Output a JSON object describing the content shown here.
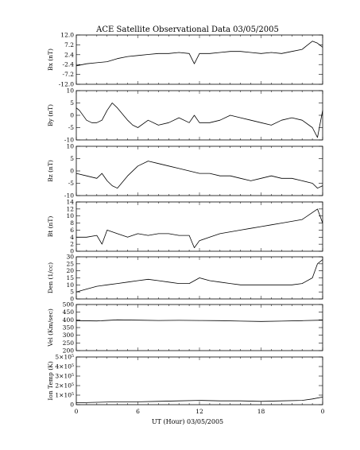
{
  "chart_data": {
    "type": "line",
    "title": "ACE Satellite Observational Data   03/05/2005",
    "xlabel": "UT (Hour)  03/05/2005",
    "x_ticks": [
      "0",
      "6",
      "12",
      "18",
      "0"
    ],
    "x_range_hours": [
      0,
      24
    ],
    "grid": false,
    "panels": [
      {
        "ylabel": "Bx (nT)",
        "ylim": [
          -12,
          12
        ],
        "yticks": [
          12.0,
          7.2,
          2.4,
          -2.4,
          -7.2,
          -12.0
        ],
        "ytick_labels": [
          "12.0",
          "7.2",
          "2.4",
          "-2.4",
          "-7.2",
          "-12.0"
        ],
        "x": [
          0,
          1,
          2,
          3,
          4,
          5,
          6,
          7,
          8,
          9,
          10,
          11,
          11.5,
          12,
          13,
          14,
          15,
          16,
          17,
          18,
          19,
          20,
          21,
          22,
          22.5,
          23,
          23.5,
          24
        ],
        "y": [
          -3,
          -2,
          -1.5,
          -1,
          0.5,
          1.5,
          2,
          2.5,
          3,
          3,
          3.5,
          3,
          -2,
          3,
          3,
          3.5,
          4,
          4,
          3.5,
          3,
          3.5,
          3,
          4,
          5,
          7,
          9,
          8,
          6
        ]
      },
      {
        "ylabel": "By (nT)",
        "ylim": [
          -10,
          10
        ],
        "yticks": [
          10,
          5,
          0,
          -5,
          -10
        ],
        "ytick_labels": [
          "10",
          "5",
          "0",
          "-5",
          "-10"
        ],
        "x": [
          0,
          0.3,
          1,
          1.5,
          2,
          2.5,
          3,
          3.5,
          4,
          5,
          5.5,
          6,
          7,
          8,
          9,
          10,
          11,
          11.5,
          12,
          13,
          14,
          15,
          16,
          17,
          18,
          19,
          20,
          21,
          22,
          23,
          23.5,
          24
        ],
        "y": [
          3,
          2,
          -2,
          -3,
          -3,
          -2,
          2,
          5,
          3,
          -2,
          -4,
          -5,
          -2,
          -4,
          -3,
          -1,
          -3,
          0,
          -3,
          -3,
          -2,
          0,
          -1,
          -2,
          -3,
          -4,
          -2,
          -1,
          -2,
          -5,
          -9,
          2
        ]
      },
      {
        "ylabel": "Bz (nT)",
        "ylim": [
          -10,
          10
        ],
        "yticks": [
          10,
          5,
          0,
          -5,
          -10
        ],
        "ytick_labels": [
          "10",
          "5",
          "0",
          "-5",
          "-10"
        ],
        "x": [
          0,
          1,
          2,
          2.5,
          3,
          3.5,
          4,
          5,
          6,
          7,
          8,
          9,
          10,
          11,
          12,
          13,
          14,
          15,
          16,
          17,
          18,
          19,
          20,
          21,
          22,
          23,
          23.5,
          24
        ],
        "y": [
          -1,
          -2,
          -3,
          -1,
          -4,
          -6,
          -7,
          -2,
          2,
          4,
          3,
          2,
          1,
          0,
          -1,
          -1,
          -2,
          -2,
          -3,
          -4,
          -3,
          -2,
          -3,
          -3,
          -4,
          -5,
          -7,
          -6
        ]
      },
      {
        "ylabel": "Bt (nT)",
        "ylim": [
          0,
          14
        ],
        "yticks": [
          14,
          12,
          10,
          8,
          6,
          4,
          2,
          0
        ],
        "ytick_labels": [
          "14",
          "12",
          "10",
          "8",
          "6",
          "4",
          "2",
          "0"
        ],
        "x": [
          0,
          1,
          2,
          2.5,
          3,
          4,
          5,
          6,
          7,
          8,
          9,
          10,
          11,
          11.5,
          12,
          13,
          14,
          15,
          16,
          17,
          18,
          19,
          20,
          21,
          22,
          23,
          23.5,
          24
        ],
        "y": [
          4,
          4,
          4.5,
          2,
          6,
          5,
          4,
          5,
          4.5,
          5,
          5,
          4.5,
          4.5,
          1,
          3,
          4,
          5,
          5.5,
          6,
          6.5,
          7,
          7.5,
          8,
          8.5,
          9,
          11,
          12,
          8
        ]
      },
      {
        "ylabel": "Den (1/cc)",
        "ylim": [
          0,
          30
        ],
        "yticks": [
          30,
          25,
          20,
          15,
          10,
          5,
          0
        ],
        "ytick_labels": [
          "30",
          "25",
          "20",
          "15",
          "10",
          "5",
          "0"
        ],
        "x": [
          0,
          1,
          2,
          3,
          4,
          5,
          6,
          7,
          8,
          9,
          10,
          11,
          12,
          13,
          14,
          15,
          16,
          17,
          18,
          19,
          20,
          21,
          22,
          23,
          23.5,
          24
        ],
        "y": [
          5,
          7,
          9,
          10,
          11,
          12,
          13,
          14,
          13,
          12,
          11,
          11,
          15,
          13,
          12,
          11,
          10,
          10,
          10,
          10,
          10,
          10,
          11,
          15,
          25,
          28
        ]
      },
      {
        "ylabel": "Vel (Km/sec)",
        "ylim": [
          200,
          500
        ],
        "yticks": [
          500,
          450,
          400,
          350,
          300,
          250,
          200
        ],
        "ytick_labels": [
          "500",
          "450",
          "400",
          "350",
          "300",
          "250",
          "200"
        ],
        "x": [
          0,
          2,
          4,
          6,
          8,
          10,
          12,
          14,
          16,
          18,
          20,
          22,
          24
        ],
        "y": [
          395,
          393,
          400,
          398,
          396,
          397,
          396,
          395,
          392,
          390,
          392,
          395,
          398
        ]
      },
      {
        "ylabel": "Ion Temp (K)",
        "ylim": [
          0,
          500000
        ],
        "yticks": [
          500000,
          400000,
          300000,
          200000,
          100000,
          0
        ],
        "ytick_labels": [
          "5×10⁵",
          "4×10⁵",
          "3×10⁵",
          "2×10⁵",
          "1×10⁵",
          "0"
        ],
        "x": [
          0,
          2,
          4,
          6,
          8,
          10,
          12,
          14,
          16,
          18,
          20,
          22,
          23,
          24
        ],
        "y": [
          20000,
          25000,
          30000,
          30000,
          35000,
          40000,
          45000,
          40000,
          40000,
          35000,
          40000,
          45000,
          60000,
          80000
        ]
      }
    ]
  }
}
